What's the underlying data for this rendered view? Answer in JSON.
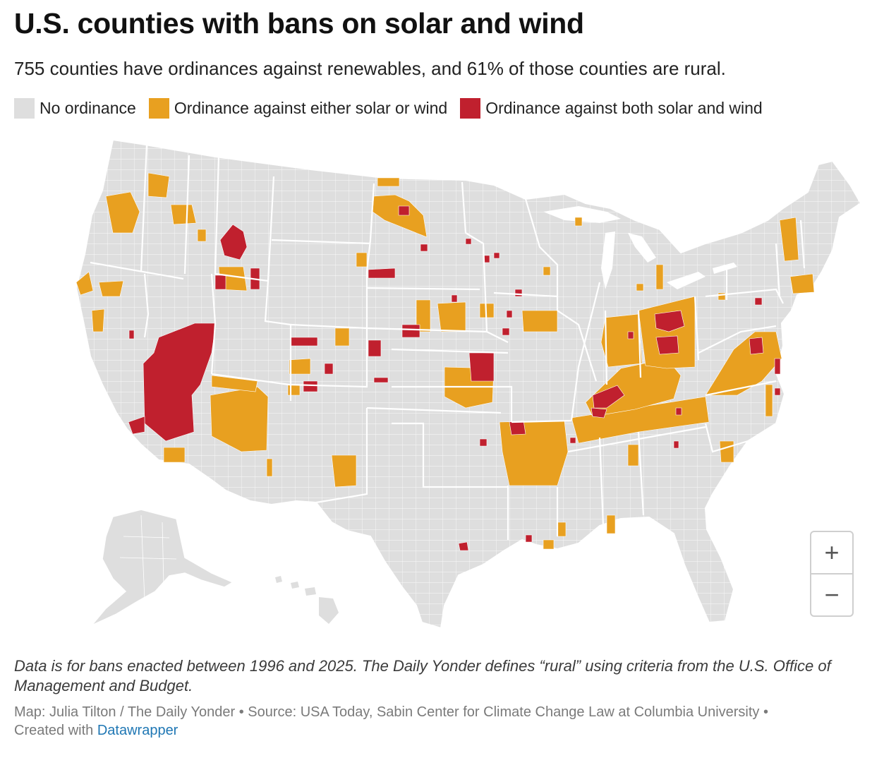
{
  "title": "U.S. counties with bans on solar and wind",
  "subtitle": "755 counties have ordinances against renewables, and 61% of those counties are rural.",
  "legend": [
    {
      "label": "No ordinance",
      "color": "#dedede"
    },
    {
      "label": "Ordinance against either solar or wind",
      "color": "#e8a020"
    },
    {
      "label": "Ordinance against both solar and wind",
      "color": "#c0202e"
    }
  ],
  "colors": {
    "base": "#dedede",
    "either": "#e8a020",
    "both": "#c0202e",
    "border": "#ffffff"
  },
  "zoom": {
    "in_icon": "plus-icon",
    "out_icon": "minus-icon",
    "in_label": "+",
    "out_label": "−"
  },
  "notes": "Data is for bans enacted between 1996 and 2025. The Daily Yonder defines “rural” using criteria from the U.S. Office of Management and Budget.",
  "credits": {
    "text": "Map: Julia Tilton / The Daily Yonder • Source: USA Today, Sabin Center for Climate Change Law at Columbia University •",
    "created_prefix": "Created with",
    "created_link": "Datawrapper"
  }
}
